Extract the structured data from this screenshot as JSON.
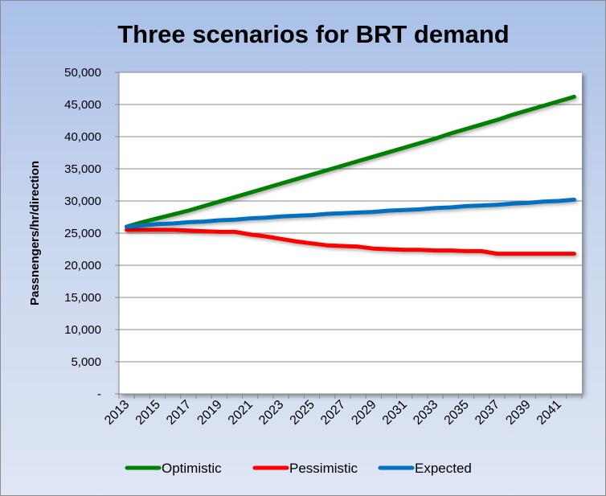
{
  "chart_data": {
    "type": "line",
    "title": "Three scenarios for BRT demand",
    "xlabel": "",
    "ylabel": "Passnengers/hr/direction",
    "ylim": [
      0,
      50000
    ],
    "yticks": [
      0,
      5000,
      10000,
      15000,
      20000,
      25000,
      30000,
      35000,
      40000,
      45000,
      50000
    ],
    "ytick_labels": [
      "-",
      "5,000",
      "10,000",
      "15,000",
      "20,000",
      "25,000",
      "30,000",
      "35,000",
      "40,000",
      "45,000",
      "50,000"
    ],
    "x": [
      2013,
      2014,
      2015,
      2016,
      2017,
      2018,
      2019,
      2020,
      2021,
      2022,
      2023,
      2024,
      2025,
      2026,
      2027,
      2028,
      2029,
      2030,
      2031,
      2032,
      2033,
      2034,
      2035,
      2036,
      2037,
      2038,
      2039,
      2040,
      2041,
      2042
    ],
    "xtick_labels": [
      "2013",
      "2015",
      "2017",
      "2019",
      "2021",
      "2023",
      "2025",
      "2027",
      "2029",
      "2031",
      "2033",
      "2035",
      "2037",
      "2039",
      "2041"
    ],
    "grid": "horizontal",
    "legend": "bottom",
    "series": [
      {
        "name": "Optimistic",
        "color": "#008000",
        "values": [
          26000,
          26700,
          27300,
          27900,
          28500,
          29200,
          29900,
          30600,
          31300,
          32000,
          32700,
          33400,
          34100,
          34800,
          35500,
          36200,
          36900,
          37600,
          38300,
          39000,
          39700,
          40500,
          41200,
          41900,
          42600,
          43400,
          44100,
          44800,
          45500,
          46200
        ]
      },
      {
        "name": "Pessimistic",
        "color": "#ff0000",
        "values": [
          25500,
          25500,
          25500,
          25500,
          25400,
          25300,
          25200,
          25200,
          24800,
          24500,
          24100,
          23700,
          23400,
          23100,
          23000,
          22900,
          22600,
          22500,
          22400,
          22400,
          22300,
          22300,
          22200,
          22200,
          21800,
          21800,
          21800,
          21800,
          21800,
          21800
        ]
      },
      {
        "name": "Expected",
        "color": "#0070c0",
        "values": [
          26000,
          26200,
          26400,
          26500,
          26700,
          26800,
          27000,
          27100,
          27300,
          27400,
          27600,
          27700,
          27800,
          28000,
          28100,
          28200,
          28300,
          28500,
          28600,
          28700,
          28900,
          29000,
          29200,
          29300,
          29400,
          29600,
          29700,
          29900,
          30000,
          30200
        ]
      }
    ]
  }
}
